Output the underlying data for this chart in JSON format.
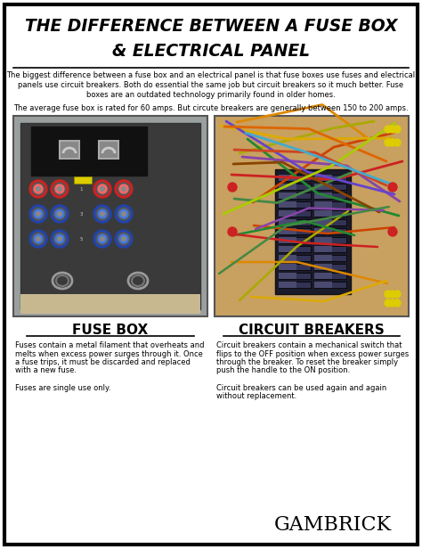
{
  "bg_color": "#ffffff",
  "border_color": "#000000",
  "title_line1": "THE DIFFERENCE BETWEEN A FUSE BOX",
  "title_line2": "& ELECTRICAL PANEL",
  "intro_text1": "The biggest difference between a fuse box and an electrical panel is that fuse boxes use fuses and electrical",
  "intro_text2": "panels use circuit breakers. Both do essential the same job but circuit breakers so it much better. Fuse",
  "intro_text3": "boxes are an outdated technology primarily found in older homes.",
  "avg_text": "The average fuse box is rated for 60 amps. But circute breakers are generally between 150 to 200 amps.",
  "label_left": "FUSE BOX",
  "label_right": "CIRCUIT BREAKERS",
  "desc_left_lines": [
    "Fuses contain a metal filament that overheats and",
    "melts when excess power surges through it. Once",
    "a fuse trips, it must be discarded and replaced",
    "with a new fuse.",
    "",
    "Fuses are single use only."
  ],
  "desc_right_lines": [
    "Circuit breakers contain a mechanical switch that",
    "flips to the OFF position when excess power surges",
    "through the breaker. To reset the breaker simply",
    "push the handle to the ON position.",
    "",
    "Circuit breakers can be used again and again",
    "without replacement."
  ],
  "brand": "GAMBRICK",
  "fuse_box_bg": "#8a9090",
  "fuse_box_inner": "#1a1a1a",
  "fuse_inner_panel": "#2a2a2a",
  "cb_bg": "#b8a070",
  "cb_panel": "#5a5a6a"
}
